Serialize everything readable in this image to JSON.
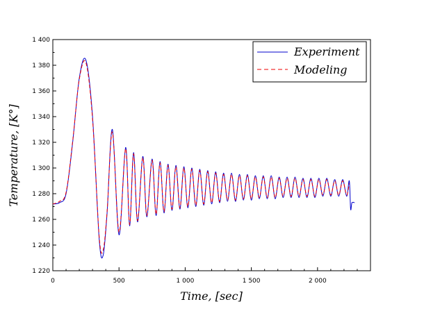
{
  "chart_data": {
    "type": "line",
    "title": "",
    "xlabel": "Time, [sec]",
    "ylabel": "Temperature, [K°]",
    "xlim": [
      0,
      2400
    ],
    "ylim": [
      1220,
      1400
    ],
    "xticks": [
      0,
      500,
      1000,
      1500,
      2000
    ],
    "xtick_labels": [
      "0",
      "500",
      "1 000",
      "1 500",
      "2 000"
    ],
    "yticks": [
      1220,
      1240,
      1260,
      1280,
      1300,
      1320,
      1340,
      1360,
      1380,
      1400
    ],
    "ytick_labels": [
      "1 220",
      "1 240",
      "1 260",
      "1 280",
      "1 300",
      "1 320",
      "1 340",
      "1 360",
      "1 380",
      "1 400"
    ],
    "legend_position": "top-right",
    "series": [
      {
        "name": "Experiment",
        "color": "#0000cc",
        "style": "solid",
        "x": [
          0,
          50,
          100,
          150,
          200,
          250,
          300,
          350,
          380,
          410,
          450,
          500,
          550,
          580,
          610,
          640,
          680,
          710,
          750,
          780,
          810,
          840,
          870,
          900,
          930,
          960,
          990,
          1020,
          1050,
          1080,
          1110,
          1140,
          1170,
          1200,
          1230,
          1260,
          1290,
          1320,
          1350,
          1380,
          1410,
          1440,
          1470,
          1500,
          1530,
          1560,
          1590,
          1620,
          1650,
          1680,
          1710,
          1740,
          1770,
          1800,
          1830,
          1860,
          1890,
          1920,
          1950,
          1980,
          2010,
          2040,
          2070,
          2100,
          2130,
          2160,
          2190,
          2220,
          2240,
          2250,
          2260,
          2280
        ],
        "y": [
          1272,
          1273,
          1280,
          1320,
          1370,
          1384,
          1340,
          1245,
          1232,
          1265,
          1330,
          1248,
          1316,
          1255,
          1312,
          1258,
          1309,
          1262,
          1307,
          1263,
          1305,
          1265,
          1303,
          1267,
          1302,
          1268,
          1301,
          1269,
          1300,
          1270,
          1299,
          1271,
          1298,
          1272,
          1297,
          1273,
          1296,
          1274,
          1296,
          1274,
          1295,
          1275,
          1295,
          1275,
          1294,
          1276,
          1294,
          1276,
          1294,
          1276,
          1293,
          1277,
          1293,
          1277,
          1293,
          1277,
          1292,
          1277,
          1292,
          1277,
          1292,
          1278,
          1292,
          1278,
          1291,
          1278,
          1291,
          1278,
          1290,
          1268,
          1273,
          1273
        ]
      },
      {
        "name": "Modeling",
        "color": "#ee0000",
        "style": "dashed",
        "x": [
          0,
          50,
          100,
          150,
          200,
          250,
          300,
          350,
          380,
          410,
          450,
          500,
          550,
          580,
          610,
          640,
          680,
          710,
          750,
          780,
          810,
          840,
          870,
          900,
          930,
          960,
          990,
          1020,
          1050,
          1080,
          1110,
          1140,
          1170,
          1200,
          1230,
          1260,
          1290,
          1320,
          1350,
          1380,
          1410,
          1440,
          1470,
          1500,
          1530,
          1560,
          1590,
          1620,
          1650,
          1680,
          1710,
          1740,
          1770,
          1800,
          1830,
          1860,
          1890,
          1920,
          1950,
          1980,
          2010,
          2040,
          2070,
          2100,
          2130,
          2160,
          2190,
          2220,
          2240
        ],
        "y": [
          1272,
          1274,
          1281,
          1321,
          1369,
          1382,
          1338,
          1247,
          1236,
          1266,
          1328,
          1250,
          1315,
          1256,
          1311,
          1259,
          1308,
          1263,
          1306,
          1264,
          1304,
          1266,
          1302,
          1268,
          1301,
          1269,
          1300,
          1270,
          1299,
          1271,
          1298,
          1272,
          1297,
          1273,
          1296,
          1274,
          1295,
          1275,
          1295,
          1275,
          1294,
          1276,
          1294,
          1276,
          1293,
          1277,
          1293,
          1277,
          1293,
          1277,
          1292,
          1278,
          1292,
          1278,
          1292,
          1278,
          1291,
          1278,
          1291,
          1278,
          1291,
          1279,
          1291,
          1279,
          1290,
          1279,
          1290,
          1279,
          1288
        ]
      }
    ]
  }
}
